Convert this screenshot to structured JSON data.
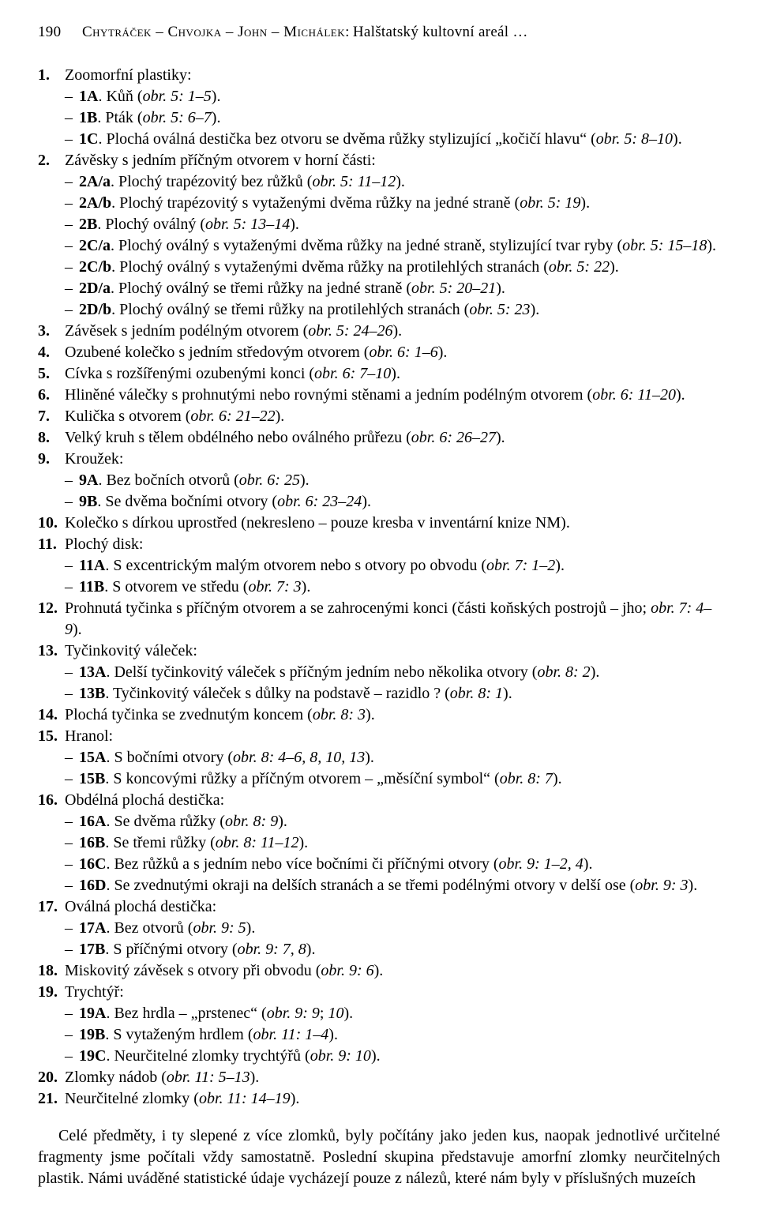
{
  "header": {
    "page_number": "190",
    "authors_sc": "Chytráček – Chvojka – John – Michálek:",
    "title_short": "Halštatský kultovní areál …"
  },
  "body": {
    "i1": {
      "num": "1.",
      "text": "Zoomorfní plastiky:"
    },
    "i1A": {
      "lbl": "1A",
      "text": ". Kůň (",
      "ref": "obr. 5: 1–5",
      "after": ")."
    },
    "i1B": {
      "lbl": "1B",
      "text": ". Pták (",
      "ref": "obr. 5: 6–7",
      "after": ")."
    },
    "i1C": {
      "lbl": "1C",
      "text": ". Plochá oválná destička bez otvoru se dvěma růžky stylizující „kočičí hlavu“ (",
      "ref": "obr. 5: 8–10",
      "after": ")."
    },
    "i2": {
      "num": "2.",
      "text": "Závěsky s jedním příčným otvorem v horní části:"
    },
    "i2Aa": {
      "lbl": "2A/a",
      "text": ". Plochý trapézovitý bez růžků (",
      "ref": "obr. 5: 11–12",
      "after": ")."
    },
    "i2Ab": {
      "lbl": "2A/b",
      "text": ". Plochý trapézovitý s vytaženými dvěma růžky na jedné straně (",
      "ref": "obr. 5: 19",
      "after": ")."
    },
    "i2B": {
      "lbl": "2B",
      "text": ". Plochý oválný (",
      "ref": "obr. 5: 13–14",
      "after": ")."
    },
    "i2Ca": {
      "lbl": "2C/a",
      "text": ". Plochý oválný s vytaženými dvěma růžky na jedné straně, stylizující tvar ryby (",
      "ref": "obr. 5: 15–18",
      "after": ")."
    },
    "i2Cb": {
      "lbl": "2C/b",
      "text": ". Plochý oválný s vytaženými dvěma růžky na protilehlých stranách (",
      "ref": "obr. 5: 22",
      "after": ")."
    },
    "i2Da": {
      "lbl": "2D/a",
      "text": ". Plochý oválný se třemi růžky na jedné straně (",
      "ref": "obr. 5: 20–21",
      "after": ")."
    },
    "i2Db": {
      "lbl": "2D/b",
      "text": ". Plochý oválný se třemi růžky na protilehlých stranách (",
      "ref": "obr. 5: 23",
      "after": ")."
    },
    "i3": {
      "num": "3.",
      "text": "Závěsek s jedním podélným otvorem (",
      "ref": "obr. 5: 24–26",
      "after": ")."
    },
    "i4": {
      "num": "4.",
      "text": "Ozubené kolečko s jedním středovým otvorem (",
      "ref": "obr. 6: 1–6",
      "after": ")."
    },
    "i5": {
      "num": "5.",
      "text": "Cívka s rozšířenými ozubenými konci (",
      "ref": "obr. 6: 7–10",
      "after": ")."
    },
    "i6": {
      "num": "6.",
      "text": "Hliněné válečky s prohnutými nebo rovnými stěnami a jedním podélným otvorem (",
      "ref": "obr. 6: 11–20",
      "after": ")."
    },
    "i7": {
      "num": "7.",
      "text": "Kulička s otvorem (",
      "ref": "obr. 6: 21–22",
      "after": ")."
    },
    "i8": {
      "num": "8.",
      "text": "Velký kruh s tělem obdélného nebo oválného průřezu (",
      "ref": "obr. 6: 26–27",
      "after": ")."
    },
    "i9": {
      "num": "9.",
      "text": "Kroužek:"
    },
    "i9A": {
      "lbl": "9A",
      "text": ". Bez bočních otvorů (",
      "ref": "obr. 6: 25",
      "after": ")."
    },
    "i9B": {
      "lbl": "9B",
      "text": ". Se dvěma bočními otvory (",
      "ref": "obr. 6: 23–24",
      "after": ")."
    },
    "i10": {
      "num": "10.",
      "text": "Kolečko s dírkou uprostřed (nekresleno – pouze kresba v inventární knize NM)."
    },
    "i11": {
      "num": "11.",
      "text": "Plochý disk:"
    },
    "i11A": {
      "lbl": "11A",
      "text": ". S excentrickým malým otvorem nebo s otvory po obvodu (",
      "ref": "obr. 7: 1–2",
      "after": ")."
    },
    "i11B": {
      "lbl": "11B",
      "text": ". S otvorem ve středu (",
      "ref": "obr. 7: 3",
      "after": ")."
    },
    "i12": {
      "num": "12.",
      "text": "Prohnutá tyčinka s příčným otvorem a se zahrocenými konci (části koňských postrojů – jho; ",
      "ref": "obr. 7: 4–9",
      "after": ")."
    },
    "i13": {
      "num": "13.",
      "text": "Tyčinkovitý váleček:"
    },
    "i13A": {
      "lbl": "13A",
      "text": ". Delší tyčinkovitý váleček s příčným jedním nebo několika otvory (",
      "ref": "obr. 8: 2",
      "after": ")."
    },
    "i13B": {
      "lbl": "13B",
      "text": ". Tyčinkovitý váleček s důlky na podstavě – razidlo ? (",
      "ref": "obr. 8: 1",
      "after": ")."
    },
    "i14": {
      "num": "14.",
      "text": "Plochá tyčinka se zvednutým koncem (",
      "ref": "obr. 8: 3",
      "after": ")."
    },
    "i15": {
      "num": "15.",
      "text": "Hranol:"
    },
    "i15A": {
      "lbl": "15A",
      "text": ". S bočními otvory (",
      "ref": "obr. 8: 4–6, 8, 10, 13",
      "after": ")."
    },
    "i15B": {
      "lbl": "15B",
      "text": ". S koncovými růžky a příčným otvorem – „měsíční symbol“ (",
      "ref": "obr. 8: 7",
      "after": ")."
    },
    "i16": {
      "num": "16.",
      "text": "Obdélná plochá destička:"
    },
    "i16A": {
      "lbl": "16A",
      "text": ". Se dvěma růžky (",
      "ref": "obr. 8: 9",
      "after": ")."
    },
    "i16B": {
      "lbl": "16B",
      "text": ". Se třemi růžky (",
      "ref": "obr. 8: 11–12",
      "after": ")."
    },
    "i16C": {
      "lbl": "16C",
      "text": ". Bez růžků a s jedním nebo více bočními či příčnými otvory (",
      "ref": "obr. 9: 1–2, 4",
      "after": ")."
    },
    "i16D": {
      "lbl": "16D",
      "text": ". Se zvednutými okraji na delších stranách a se třemi podélnými otvory v delší ose (",
      "ref": "obr. 9: 3",
      "after": ")."
    },
    "i17": {
      "num": "17.",
      "text": "Oválná plochá destička:"
    },
    "i17A": {
      "lbl": "17A",
      "text": ". Bez otvorů (",
      "ref": "obr. 9: 5",
      "after": ")."
    },
    "i17B": {
      "lbl": "17B",
      "text": ". S příčnými otvory (",
      "ref": "obr. 9: 7, 8",
      "after": ")."
    },
    "i18": {
      "num": "18.",
      "text": "Miskovitý závěsek s otvory při obvodu (",
      "ref": "obr. 9: 6",
      "after": ")."
    },
    "i19": {
      "num": "19.",
      "text": "Trychtýř:"
    },
    "i19A": {
      "lbl": "19A",
      "text": ". Bez hrdla – „prstenec“ (",
      "ref": "obr. 9: 9",
      "mid": "; ",
      "ref2": "10",
      "after": ")."
    },
    "i19B": {
      "lbl": "19B",
      "text": ". S vytaženým hrdlem (",
      "ref": "obr. 11: 1–4",
      "after": ")."
    },
    "i19C": {
      "lbl": "19C",
      "text": ". Neurčitelné zlomky trychtýřů (",
      "ref": "obr. 9: 10",
      "after": ")."
    },
    "i20": {
      "num": "20.",
      "text": "Zlomky nádob (",
      "ref": "obr. 11: 5–13",
      "after": ")."
    },
    "i21": {
      "num": "21.",
      "text": "Neurčitelné zlomky (",
      "ref": "obr. 11: 14–19",
      "after": ")."
    }
  },
  "paragraph": "Celé předměty, i ty slepené z více zlomků, byly počítány jako jeden kus, naopak jednotlivé určitelné fragmenty jsme počítali vždy samostatně. Poslední skupina představuje amorfní zlomky neurčitelných plastik. Námi uváděné statistické údaje vycházejí pouze z nálezů, které nám byly v příslušných muzeích"
}
